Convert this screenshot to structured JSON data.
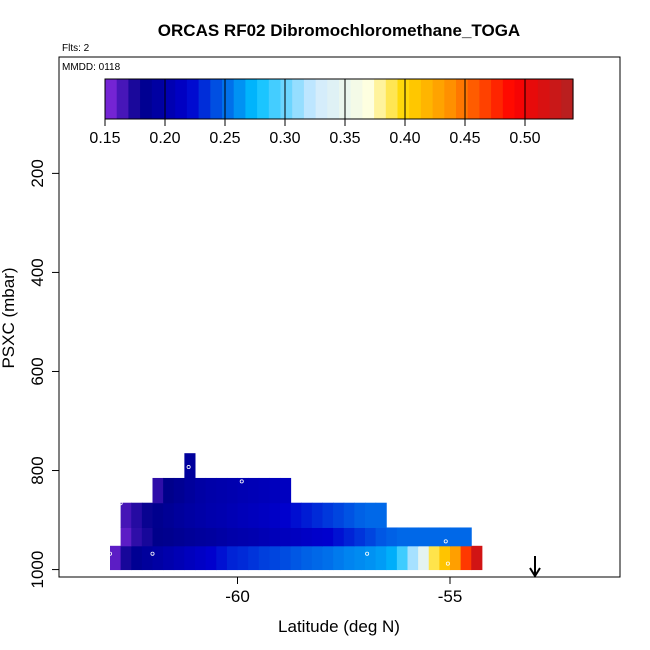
{
  "chart_data": {
    "type": "heatmap",
    "title": "ORCAS RF02 Dibromochloromethane_TOGA",
    "subtitle_flts": "Flts: 2",
    "subtitle_mmdd": "MMDD: 0118",
    "xlabel": "Latitude (deg N)",
    "ylabel": "PSXC (mbar)",
    "xlim": [
      -64.2,
      -51.0
    ],
    "ylim": [
      1015,
      -35
    ],
    "x_ticks": [
      -60,
      -55
    ],
    "x_tick_labels": [
      "-60",
      "-55"
    ],
    "y_ticks": [
      200,
      400,
      600,
      800,
      1000
    ],
    "y_tick_labels": [
      "200",
      "400",
      "600",
      "800",
      "1000"
    ],
    "colorbar": {
      "min": 0.15,
      "max": 0.54,
      "ticks": [
        0.15,
        0.2,
        0.25,
        0.3,
        0.35,
        0.4,
        0.45,
        0.5
      ],
      "tick_labels": [
        "0.15",
        "0.20",
        "0.25",
        "0.30",
        "0.35",
        "0.40",
        "0.45",
        "0.50"
      ],
      "stops": [
        {
          "v": 0.15,
          "c": "#8A2BE2"
        },
        {
          "v": 0.18,
          "c": "#00008B"
        },
        {
          "v": 0.22,
          "c": "#0000CD"
        },
        {
          "v": 0.275,
          "c": "#00BFFF"
        },
        {
          "v": 0.325,
          "c": "#CFEAFF"
        },
        {
          "v": 0.37,
          "c": "#FFFFE0"
        },
        {
          "v": 0.4,
          "c": "#FFD700"
        },
        {
          "v": 0.44,
          "c": "#FF8C00"
        },
        {
          "v": 0.49,
          "c": "#FF0000"
        },
        {
          "v": 0.54,
          "c": "#B22222"
        }
      ]
    },
    "cell_width_deg": 0.25,
    "rows": [
      {
        "p_top": 952,
        "p_bot": 1000,
        "x_start": -63.0,
        "values": [
          0.16,
          0.175,
          0.185,
          0.19,
          0.195,
          0.2,
          0.205,
          0.21,
          0.215,
          0.22,
          0.225,
          0.23,
          0.232,
          0.235,
          0.238,
          0.24,
          0.242,
          0.245,
          0.248,
          0.25,
          0.252,
          0.255,
          0.258,
          0.26,
          0.262,
          0.265,
          0.27,
          0.29,
          0.315,
          0.345,
          0.39,
          0.41,
          0.43,
          0.47,
          0.52
        ]
      },
      {
        "p_top": 915,
        "p_bot": 952,
        "x_start": -62.75,
        "values": [
          0.16,
          0.17,
          0.175,
          0.18,
          0.182,
          0.185,
          0.188,
          0.19,
          0.192,
          0.195,
          0.198,
          0.2,
          0.202,
          0.205,
          0.208,
          0.21,
          0.212,
          0.215,
          0.218,
          0.22,
          0.225,
          0.23,
          0.235,
          0.24,
          0.245,
          0.248,
          0.25,
          0.25,
          0.25,
          0.25,
          0.25,
          0.25,
          0.25
        ]
      },
      {
        "p_top": 865,
        "p_bot": 915,
        "x_start": -62.75,
        "values": [
          0.165,
          0.172,
          0.178,
          0.182,
          0.186,
          0.19,
          0.194,
          0.197,
          0.2,
          0.202,
          0.205,
          0.208,
          0.21,
          0.213,
          0.216,
          0.22,
          0.224,
          0.228,
          0.232,
          0.236,
          0.24,
          0.244,
          0.248,
          0.25,
          0.25
        ]
      },
      {
        "p_top": 815,
        "p_bot": 865,
        "x_start": -62.0,
        "values": [
          0.17,
          0.18,
          0.185,
          0.19,
          0.195,
          0.198,
          0.2,
          0.202,
          0.204,
          0.206,
          0.208,
          0.21,
          0.212
        ]
      },
      {
        "p_top": 765,
        "p_bot": 815,
        "x_start": -61.25,
        "values": [
          0.19
        ]
      }
    ],
    "sample_points": [
      {
        "lat": -63.0,
        "p": 968
      },
      {
        "lat": -62.75,
        "p": 866
      },
      {
        "lat": -62.0,
        "p": 968
      },
      {
        "lat": -61.15,
        "p": 793
      },
      {
        "lat": -59.9,
        "p": 822
      },
      {
        "lat": -56.95,
        "p": 968
      },
      {
        "lat": -55.1,
        "p": 943
      },
      {
        "lat": -55.05,
        "p": 988
      }
    ],
    "arrow_lat": -53.0
  }
}
